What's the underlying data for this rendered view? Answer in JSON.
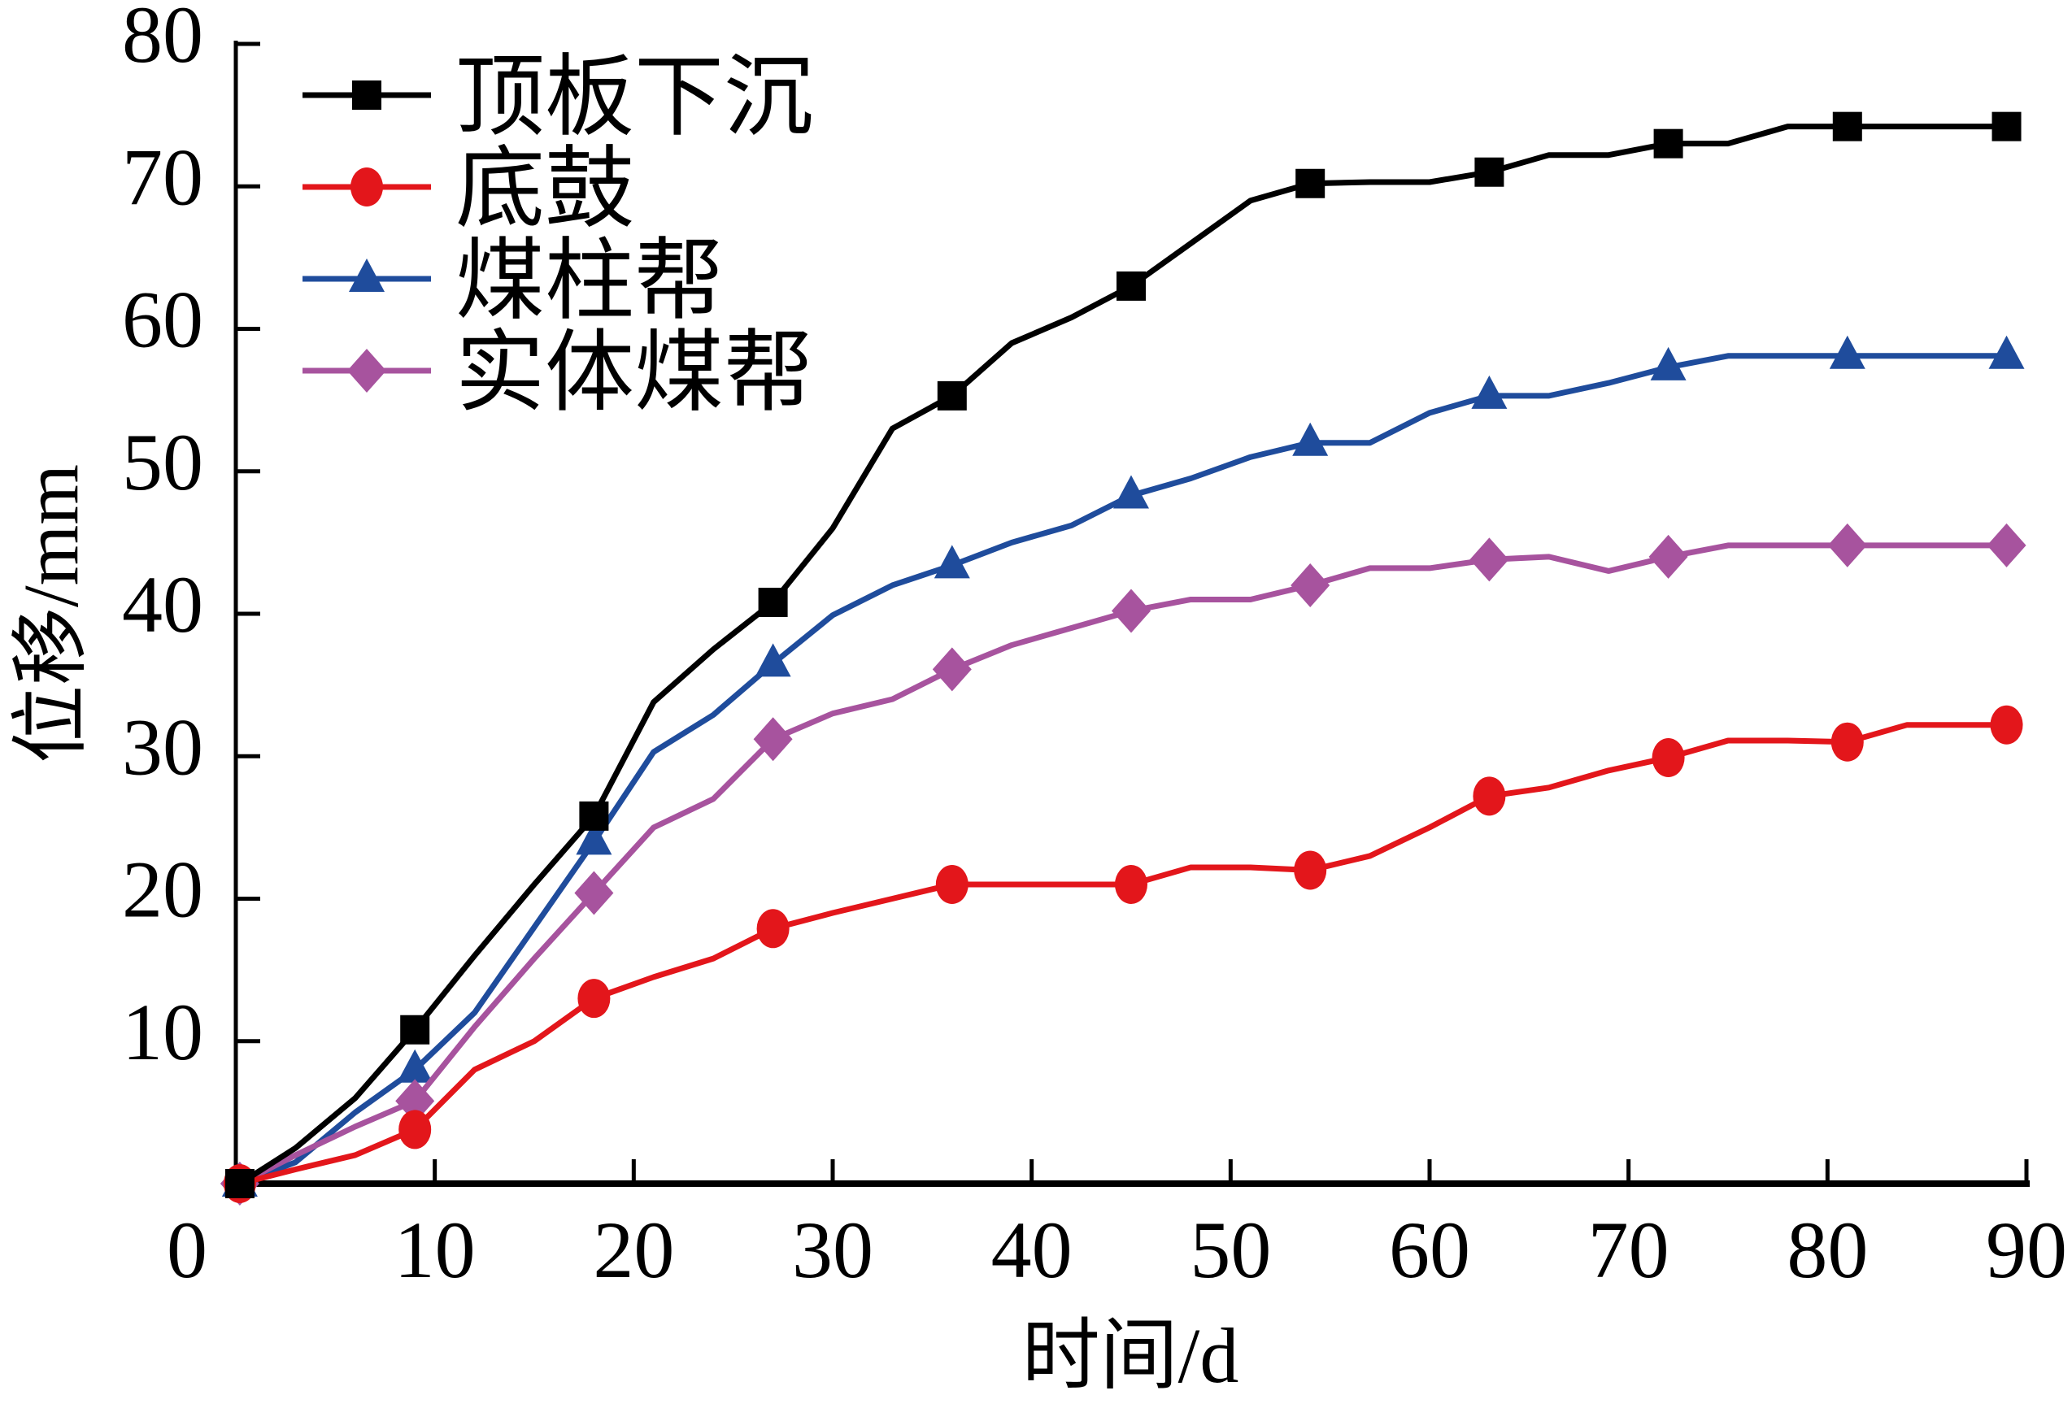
{
  "chart_data": {
    "type": "line",
    "title": "",
    "xlabel": "时间/d",
    "ylabel": "位移/mm",
    "xlim": [
      0,
      90
    ],
    "ylim": [
      0,
      80
    ],
    "xticks": [
      0,
      10,
      20,
      30,
      40,
      50,
      60,
      70,
      80,
      90
    ],
    "yticks": [
      10,
      20,
      30,
      40,
      50,
      60,
      70,
      80
    ],
    "xtick_labels": [
      "0",
      "10",
      "20",
      "30",
      "40",
      "50",
      "60",
      "70",
      "80",
      "90"
    ],
    "ytick_labels": [
      "10",
      "20",
      "30",
      "40",
      "50",
      "60",
      "70",
      "80"
    ],
    "grid": false,
    "legend_position": "top-left",
    "x": [
      0,
      3,
      6,
      9,
      12,
      15,
      18,
      21,
      24,
      27,
      30,
      33,
      36,
      39,
      42,
      45,
      48,
      51,
      54,
      57,
      60,
      63,
      66,
      69,
      72,
      75,
      78,
      81,
      84,
      89
    ],
    "marker_indices": [
      0,
      3,
      6,
      9,
      12,
      15,
      18,
      21,
      24,
      27,
      29
    ],
    "series": [
      {
        "name": "顶板下沉",
        "color": "#000000",
        "marker": "square",
        "values": [
          0,
          2.5,
          6,
          10.8,
          16,
          21,
          25.8,
          33.8,
          37.5,
          40.8,
          46,
          53,
          55.3,
          59,
          60.8,
          63,
          66,
          69,
          70.2,
          70.3,
          70.3,
          71,
          72.2,
          72.2,
          73,
          73,
          74.2,
          74.2,
          74.2,
          74.2
        ]
      },
      {
        "name": "底鼓",
        "color": "#e3161b",
        "marker": "circle",
        "values": [
          0,
          1,
          2,
          3.8,
          8,
          10,
          13,
          14.5,
          15.8,
          17.9,
          19,
          20,
          21,
          21,
          21,
          21,
          22.2,
          22.2,
          22,
          23,
          25,
          27.2,
          27.8,
          29,
          29.9,
          31.1,
          31.1,
          31,
          32.2,
          32.2
        ]
      },
      {
        "name": "煤柱帮",
        "color": "#1f4c9c",
        "marker": "triangle",
        "values": [
          0,
          1.5,
          5,
          8,
          12,
          18,
          24,
          30.3,
          32.9,
          36.5,
          39.9,
          42,
          43.4,
          45,
          46.2,
          48.3,
          49.5,
          51,
          52,
          52,
          54.1,
          55.3,
          55.3,
          56.2,
          57.3,
          58.1,
          58.1,
          58.1,
          58.1,
          58.1
        ]
      },
      {
        "name": "实体煤帮",
        "color": "#a7539e",
        "marker": "diamond",
        "values": [
          0,
          2,
          4,
          5.8,
          11,
          15.8,
          20.4,
          25,
          27,
          31.2,
          33,
          34,
          36.1,
          37.8,
          39,
          40.2,
          41,
          41,
          42,
          43.2,
          43.2,
          43.8,
          44,
          43,
          44,
          44.8,
          44.8,
          44.8,
          44.8,
          44.8
        ]
      }
    ]
  }
}
